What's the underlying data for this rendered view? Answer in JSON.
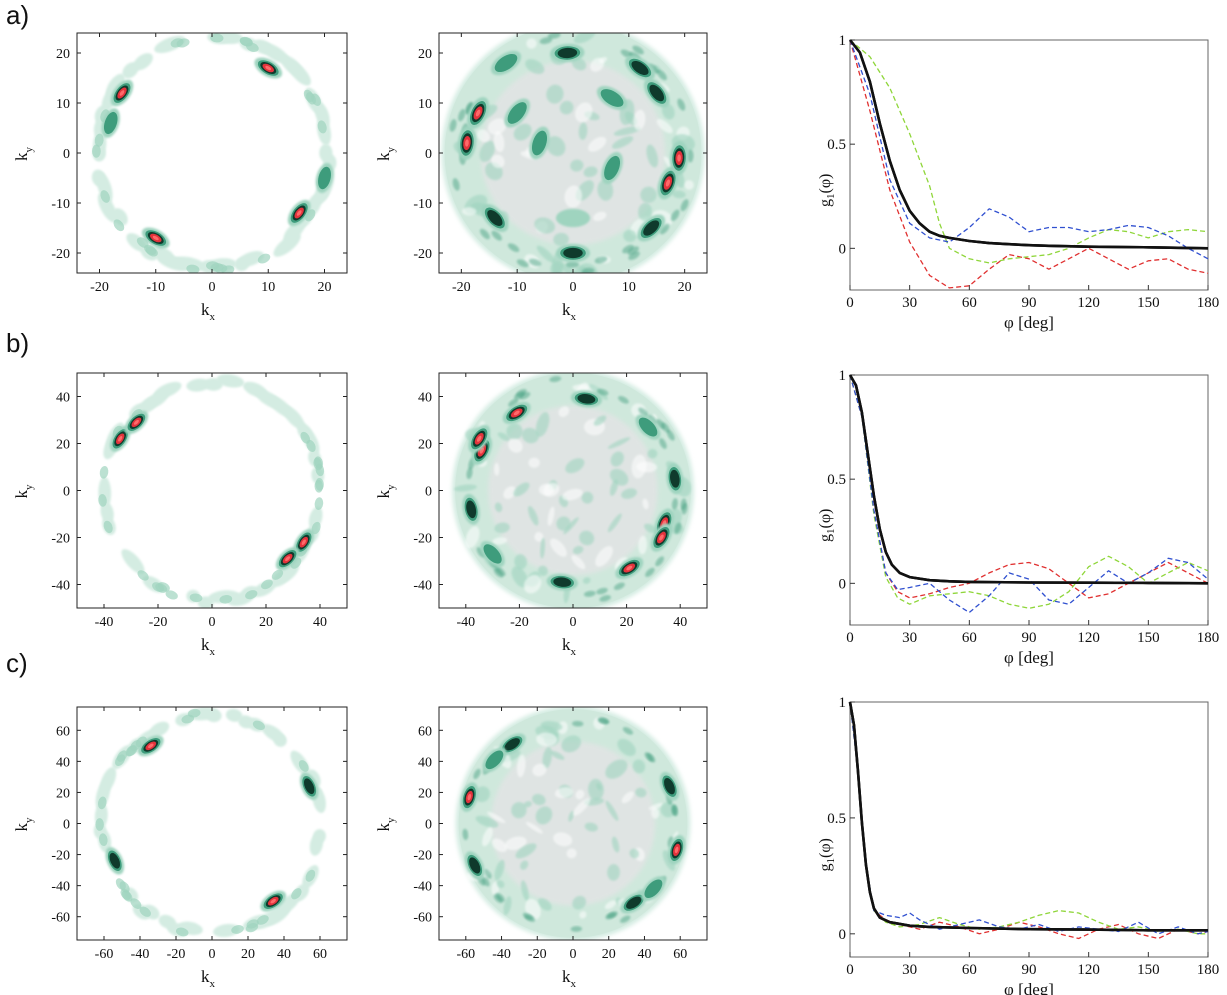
{
  "figure": {
    "rows": [
      {
        "label": "a)"
      },
      {
        "label": "b)"
      },
      {
        "label": "c)"
      }
    ]
  },
  "colors": {
    "pale": "#d4ece2",
    "light": "#9fd4bf",
    "mid": "#3e9c7c",
    "dark": "#0f3a2c",
    "hot": "#e2333c",
    "hot_core": "#ff6a6a",
    "faint_center": "#e6e3e6",
    "series_thermal": "#111111",
    "series_red": "#e03030",
    "series_green": "#8fd63a",
    "series_blue": "#3050d0"
  },
  "chart_data": [
    {
      "type": "heatmap",
      "row": "a)",
      "panel": "left",
      "xlabel": "k",
      "xlabel_sub": "x",
      "ylabel": "k",
      "ylabel_sub": "y",
      "xlim": [
        -24,
        24
      ],
      "ylim": [
        -24,
        24
      ],
      "xticks": [
        -20,
        -10,
        0,
        10,
        20
      ],
      "yticks": [
        -20,
        -10,
        0,
        10,
        20
      ],
      "ring_radius": 20.5,
      "peaks": [
        {
          "x": 10,
          "y": 17,
          "level": "hot"
        },
        {
          "x": -16,
          "y": 12,
          "level": "hot"
        },
        {
          "x": -10,
          "y": -17,
          "level": "hot"
        },
        {
          "x": 15.5,
          "y": -12,
          "level": "hot"
        },
        {
          "x": -18,
          "y": 6,
          "level": "mid"
        },
        {
          "x": 20,
          "y": -5,
          "level": "mid"
        }
      ]
    },
    {
      "type": "heatmap",
      "row": "a)",
      "panel": "middle",
      "xlabel": "k",
      "xlabel_sub": "x",
      "ylabel": "k",
      "ylabel_sub": "y",
      "xlim": [
        -24,
        24
      ],
      "ylim": [
        -24,
        24
      ],
      "xticks": [
        -20,
        -10,
        0,
        10,
        20
      ],
      "yticks": [
        -20,
        -10,
        0,
        10,
        20
      ],
      "disc_radius": 23,
      "peaks": [
        {
          "x": -17,
          "y": 8,
          "level": "hot"
        },
        {
          "x": -19,
          "y": 2,
          "level": "hot"
        },
        {
          "x": 17,
          "y": -6,
          "level": "hot"
        },
        {
          "x": 19,
          "y": -1,
          "level": "hot"
        },
        {
          "x": -12,
          "y": 18,
          "level": "mid"
        },
        {
          "x": 12,
          "y": 17,
          "level": "dark"
        },
        {
          "x": -1,
          "y": 20,
          "level": "dark"
        },
        {
          "x": 15,
          "y": 12,
          "level": "dark"
        },
        {
          "x": 7,
          "y": 11,
          "level": "mid"
        },
        {
          "x": -6,
          "y": 2,
          "level": "mid"
        },
        {
          "x": 7,
          "y": -3,
          "level": "mid"
        },
        {
          "x": -14,
          "y": -13,
          "level": "dark"
        },
        {
          "x": 0,
          "y": -20,
          "level": "dark"
        },
        {
          "x": -10,
          "y": 8,
          "level": "mid"
        },
        {
          "x": 14,
          "y": -15,
          "level": "dark"
        },
        {
          "x": 0,
          "y": -13,
          "level": "light"
        }
      ]
    },
    {
      "type": "line",
      "row": "a)",
      "panel": "right",
      "xlabel": "φ [deg]",
      "ylabel": "g",
      "ylabel_sub": "1",
      "ylabel_suffix": "(φ)",
      "xlim": [
        0,
        180
      ],
      "ylim": [
        -0.2,
        1.0
      ],
      "xticks": [
        0,
        30,
        60,
        90,
        120,
        150,
        180
      ],
      "yticks": [
        0,
        0.5,
        1
      ],
      "series": [
        {
          "style": "solid",
          "color": "#111111",
          "x": [
            0,
            5,
            10,
            15,
            20,
            25,
            30,
            35,
            40,
            45,
            50,
            60,
            70,
            80,
            90,
            100,
            120,
            150,
            180
          ],
          "y": [
            1.0,
            0.94,
            0.8,
            0.6,
            0.42,
            0.28,
            0.18,
            0.12,
            0.08,
            0.06,
            0.05,
            0.035,
            0.025,
            0.02,
            0.015,
            0.012,
            0.008,
            0.005,
            0.0
          ]
        },
        {
          "style": "dashed",
          "color": "#e03030",
          "x": [
            0,
            10,
            20,
            30,
            40,
            50,
            60,
            70,
            80,
            90,
            100,
            110,
            120,
            130,
            140,
            150,
            160,
            170,
            180
          ],
          "y": [
            1.0,
            0.66,
            0.28,
            0.03,
            -0.13,
            -0.19,
            -0.18,
            -0.1,
            -0.03,
            -0.05,
            -0.1,
            -0.05,
            0.0,
            -0.05,
            -0.1,
            -0.06,
            -0.05,
            -0.1,
            -0.12
          ]
        },
        {
          "style": "dashed",
          "color": "#8fd63a",
          "x": [
            0,
            10,
            20,
            30,
            40,
            45,
            50,
            60,
            70,
            80,
            90,
            100,
            110,
            120,
            130,
            140,
            150,
            160,
            170,
            180
          ],
          "y": [
            1.0,
            0.92,
            0.77,
            0.55,
            0.3,
            0.12,
            0.0,
            -0.05,
            -0.07,
            -0.05,
            -0.04,
            -0.03,
            0.0,
            0.05,
            0.09,
            0.08,
            0.05,
            0.08,
            0.09,
            0.08
          ]
        },
        {
          "style": "dashed",
          "color": "#3050d0",
          "x": [
            0,
            10,
            20,
            30,
            40,
            50,
            60,
            70,
            80,
            90,
            100,
            110,
            120,
            130,
            140,
            150,
            160,
            170,
            180
          ],
          "y": [
            1.0,
            0.74,
            0.33,
            0.12,
            0.05,
            0.03,
            0.1,
            0.19,
            0.15,
            0.08,
            0.1,
            0.1,
            0.08,
            0.09,
            0.11,
            0.1,
            0.06,
            0.0,
            -0.05
          ]
        }
      ]
    },
    {
      "type": "heatmap",
      "row": "b)",
      "panel": "left",
      "xlabel": "k",
      "xlabel_sub": "x",
      "ylabel": "k",
      "ylabel_sub": "y",
      "xlim": [
        -50,
        50
      ],
      "ylim": [
        -50,
        50
      ],
      "xticks": [
        -40,
        -20,
        0,
        20,
        40
      ],
      "yticks": [
        -40,
        -20,
        0,
        20,
        40
      ],
      "ring_radius": 40.5,
      "peaks": [
        {
          "x": -34,
          "y": 22,
          "level": "hot"
        },
        {
          "x": -28,
          "y": 29,
          "level": "hot"
        },
        {
          "x": 34,
          "y": -22,
          "level": "hot"
        },
        {
          "x": 28,
          "y": -29,
          "level": "hot"
        }
      ]
    },
    {
      "type": "heatmap",
      "row": "b)",
      "panel": "middle",
      "xlabel": "k",
      "xlabel_sub": "x",
      "ylabel": "k",
      "ylabel_sub": "y",
      "xlim": [
        -50,
        50
      ],
      "ylim": [
        -50,
        50
      ],
      "xticks": [
        -40,
        -20,
        0,
        20,
        40
      ],
      "yticks": [
        -40,
        -20,
        0,
        20,
        40
      ],
      "disc_radius": 44,
      "peaks": [
        {
          "x": -21,
          "y": 33,
          "level": "hot"
        },
        {
          "x": -34,
          "y": 17,
          "level": "hot"
        },
        {
          "x": -35,
          "y": 22,
          "level": "hot"
        },
        {
          "x": 34,
          "y": -14,
          "level": "hot"
        },
        {
          "x": 33,
          "y": -20,
          "level": "hot"
        },
        {
          "x": 21,
          "y": -33,
          "level": "hot"
        },
        {
          "x": 5,
          "y": 39,
          "level": "dark"
        },
        {
          "x": -4,
          "y": -39,
          "level": "dark"
        },
        {
          "x": 38,
          "y": 5,
          "level": "dark"
        },
        {
          "x": -38,
          "y": -8,
          "level": "dark"
        },
        {
          "x": -30,
          "y": -27,
          "level": "mid"
        },
        {
          "x": 28,
          "y": 27,
          "level": "mid"
        }
      ]
    },
    {
      "type": "line",
      "row": "b)",
      "panel": "right",
      "xlabel": "φ [deg]",
      "ylabel": "g",
      "ylabel_sub": "1",
      "ylabel_suffix": "(φ)",
      "xlim": [
        0,
        180
      ],
      "ylim": [
        -0.2,
        1.0
      ],
      "xticks": [
        0,
        30,
        60,
        90,
        120,
        150,
        180
      ],
      "yticks": [
        0,
        0.5,
        1
      ],
      "series": [
        {
          "style": "solid",
          "color": "#111111",
          "x": [
            0,
            3,
            6,
            9,
            12,
            15,
            18,
            21,
            25,
            30,
            40,
            50,
            60,
            90,
            120,
            150,
            180
          ],
          "y": [
            1.0,
            0.95,
            0.82,
            0.62,
            0.42,
            0.26,
            0.15,
            0.09,
            0.05,
            0.03,
            0.015,
            0.01,
            0.007,
            0.004,
            0.003,
            0.002,
            0.0
          ]
        },
        {
          "style": "dashed",
          "color": "#e03030",
          "x": [
            0,
            6,
            12,
            18,
            24,
            30,
            40,
            50,
            60,
            70,
            80,
            90,
            100,
            110,
            120,
            130,
            140,
            150,
            160,
            170,
            180
          ],
          "y": [
            1.0,
            0.8,
            0.35,
            0.05,
            -0.04,
            -0.07,
            -0.05,
            -0.02,
            0.0,
            0.05,
            0.09,
            0.1,
            0.07,
            0.0,
            -0.07,
            -0.05,
            0.0,
            0.05,
            0.1,
            0.05,
            0.0
          ]
        },
        {
          "style": "dashed",
          "color": "#8fd63a",
          "x": [
            0,
            6,
            12,
            18,
            24,
            30,
            40,
            50,
            60,
            70,
            80,
            90,
            100,
            110,
            120,
            130,
            140,
            150,
            160,
            170,
            180
          ],
          "y": [
            1.0,
            0.8,
            0.33,
            0.03,
            -0.07,
            -0.1,
            -0.06,
            -0.05,
            -0.04,
            -0.06,
            -0.1,
            -0.12,
            -0.1,
            -0.04,
            0.08,
            0.13,
            0.08,
            0.0,
            0.05,
            0.1,
            0.06
          ]
        },
        {
          "style": "dashed",
          "color": "#3050d0",
          "x": [
            0,
            6,
            12,
            18,
            24,
            30,
            40,
            50,
            60,
            70,
            80,
            90,
            100,
            110,
            120,
            130,
            140,
            150,
            160,
            170,
            180
          ],
          "y": [
            1.0,
            0.8,
            0.35,
            0.05,
            -0.03,
            -0.02,
            0.0,
            -0.08,
            -0.14,
            -0.06,
            0.05,
            0.02,
            -0.08,
            -0.1,
            -0.02,
            0.06,
            0.0,
            0.05,
            0.12,
            0.1,
            0.02
          ]
        }
      ]
    },
    {
      "type": "heatmap",
      "row": "c)",
      "panel": "left",
      "xlabel": "k",
      "xlabel_sub": "x",
      "ylabel": "k",
      "ylabel_sub": "y",
      "xlim": [
        -75,
        75
      ],
      "ylim": [
        -75,
        75
      ],
      "xticks": [
        -60,
        -40,
        -20,
        0,
        20,
        40,
        60
      ],
      "yticks": [
        -60,
        -40,
        -20,
        0,
        20,
        40,
        60
      ],
      "ring_radius": 61,
      "peaks": [
        {
          "x": -34,
          "y": 50,
          "level": "hot"
        },
        {
          "x": 34,
          "y": -50,
          "level": "hot"
        },
        {
          "x": 54,
          "y": 24,
          "level": "dark"
        },
        {
          "x": -54,
          "y": -24,
          "level": "dark"
        }
      ]
    },
    {
      "type": "heatmap",
      "row": "c)",
      "panel": "middle",
      "xlabel": "k",
      "xlabel_sub": "x",
      "ylabel": "k",
      "ylabel_sub": "y",
      "xlim": [
        -75,
        75
      ],
      "ylim": [
        -75,
        75
      ],
      "xticks": [
        -60,
        -40,
        -20,
        0,
        20,
        40,
        60
      ],
      "yticks": [
        -60,
        -40,
        -20,
        0,
        20,
        40,
        60
      ],
      "disc_radius": 64,
      "peaks": [
        {
          "x": -58,
          "y": 17,
          "level": "hot"
        },
        {
          "x": 58,
          "y": -17,
          "level": "hot"
        },
        {
          "x": -55,
          "y": -27,
          "level": "dark"
        },
        {
          "x": 54,
          "y": 24,
          "level": "dark"
        },
        {
          "x": -34,
          "y": 51,
          "level": "dark"
        },
        {
          "x": 34,
          "y": -51,
          "level": "dark"
        },
        {
          "x": -44,
          "y": 41,
          "level": "mid"
        },
        {
          "x": 45,
          "y": -42,
          "level": "mid"
        }
      ]
    },
    {
      "type": "line",
      "row": "c)",
      "panel": "right",
      "xlabel": "φ [deg]",
      "ylabel": "g",
      "ylabel_sub": "1",
      "ylabel_suffix": "(φ)",
      "xlim": [
        0,
        180
      ],
      "ylim": [
        -0.1,
        1.0
      ],
      "xticks": [
        0,
        30,
        60,
        90,
        120,
        150,
        180
      ],
      "yticks": [
        0,
        0.5,
        1
      ],
      "series": [
        {
          "style": "solid",
          "color": "#111111",
          "x": [
            0,
            2,
            4,
            6,
            8,
            10,
            12,
            15,
            20,
            30,
            40,
            60,
            90,
            120,
            150,
            180
          ],
          "y": [
            1.0,
            0.9,
            0.7,
            0.48,
            0.3,
            0.18,
            0.11,
            0.07,
            0.05,
            0.035,
            0.03,
            0.025,
            0.02,
            0.018,
            0.015,
            0.015
          ]
        },
        {
          "style": "dashed",
          "color": "#e03030",
          "x": [
            0,
            4,
            8,
            12,
            18,
            25,
            35,
            45,
            55,
            65,
            75,
            85,
            95,
            105,
            115,
            125,
            135,
            145,
            155,
            165,
            175,
            180
          ],
          "y": [
            1.0,
            0.7,
            0.3,
            0.1,
            0.06,
            0.04,
            0.02,
            0.05,
            0.03,
            0.0,
            0.02,
            0.05,
            0.03,
            0.0,
            -0.02,
            0.02,
            0.04,
            0.0,
            -0.02,
            0.02,
            0.0,
            0.01
          ]
        },
        {
          "style": "dashed",
          "color": "#8fd63a",
          "x": [
            0,
            4,
            8,
            12,
            18,
            25,
            35,
            45,
            55,
            65,
            75,
            85,
            95,
            105,
            115,
            125,
            135,
            145,
            155,
            165,
            175,
            180
          ],
          "y": [
            1.0,
            0.7,
            0.3,
            0.1,
            0.05,
            0.03,
            0.04,
            0.07,
            0.04,
            0.02,
            0.03,
            0.05,
            0.08,
            0.1,
            0.09,
            0.05,
            0.02,
            0.03,
            0.01,
            0.02,
            0.0,
            0.0
          ]
        },
        {
          "style": "dashed",
          "color": "#3050d0",
          "x": [
            0,
            4,
            8,
            12,
            18,
            25,
            30,
            35,
            45,
            55,
            65,
            75,
            85,
            95,
            105,
            115,
            125,
            135,
            145,
            155,
            165,
            175,
            180
          ],
          "y": [
            1.0,
            0.7,
            0.3,
            0.1,
            0.08,
            0.07,
            0.09,
            0.06,
            0.02,
            0.04,
            0.06,
            0.03,
            0.02,
            0.04,
            0.01,
            0.03,
            0.02,
            0.01,
            0.05,
            0.0,
            0.03,
            0.0,
            0.01
          ]
        }
      ]
    }
  ]
}
